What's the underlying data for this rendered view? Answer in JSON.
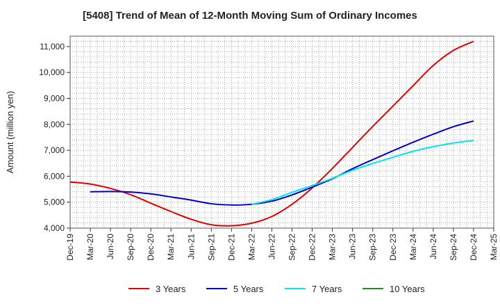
{
  "chart_data": {
    "type": "line",
    "title": "[5408]  Trend of Mean of 12-Month Moving Sum of Ordinary Incomes",
    "xlabel": "",
    "ylabel": "Amount (million yen)",
    "ylim": [
      4000,
      11400
    ],
    "yticks": [
      4000,
      5000,
      6000,
      7000,
      8000,
      9000,
      10000,
      11000
    ],
    "ytick_labels": [
      "4,000",
      "5,000",
      "6,000",
      "7,000",
      "8,000",
      "9,000",
      "10,000",
      "11,000"
    ],
    "categories": [
      "Dec-19",
      "Mar-20",
      "Jun-20",
      "Sep-20",
      "Dec-20",
      "Mar-21",
      "Jun-21",
      "Sep-21",
      "Dec-21",
      "Mar-22",
      "Jun-22",
      "Sep-22",
      "Dec-22",
      "Mar-23",
      "Jun-23",
      "Sep-23",
      "Dec-23",
      "Mar-24",
      "Jun-24",
      "Sep-24",
      "Dec-24",
      "Mar-25"
    ],
    "grid": true,
    "legend_position": "bottom",
    "series": [
      {
        "name": "3 Years",
        "color": "#e00000",
        "values": [
          5780,
          5700,
          5530,
          5290,
          4960,
          4640,
          4340,
          4130,
          4090,
          4190,
          4450,
          4920,
          5550,
          6300,
          7110,
          7920,
          8700,
          9490,
          10270,
          10850,
          11200,
          null
        ]
      },
      {
        "name": "5 Years",
        "color": "#0000c8",
        "values": [
          null,
          5400,
          5410,
          5390,
          5320,
          5200,
          5080,
          4940,
          4890,
          4920,
          5040,
          5280,
          5580,
          5900,
          6290,
          6640,
          6980,
          7310,
          7620,
          7910,
          8130,
          null
        ]
      },
      {
        "name": "7 Years",
        "color": "#00e5ee",
        "values": [
          null,
          null,
          null,
          null,
          null,
          null,
          null,
          null,
          null,
          4920,
          5100,
          5380,
          5640,
          5920,
          6230,
          6490,
          6730,
          6960,
          7140,
          7280,
          7380,
          null
        ]
      },
      {
        "name": "10 Years",
        "color": "#228b22",
        "values": [
          null,
          null,
          null,
          null,
          null,
          null,
          null,
          null,
          null,
          null,
          null,
          null,
          null,
          null,
          null,
          null,
          null,
          null,
          null,
          null,
          null,
          null
        ]
      }
    ]
  }
}
